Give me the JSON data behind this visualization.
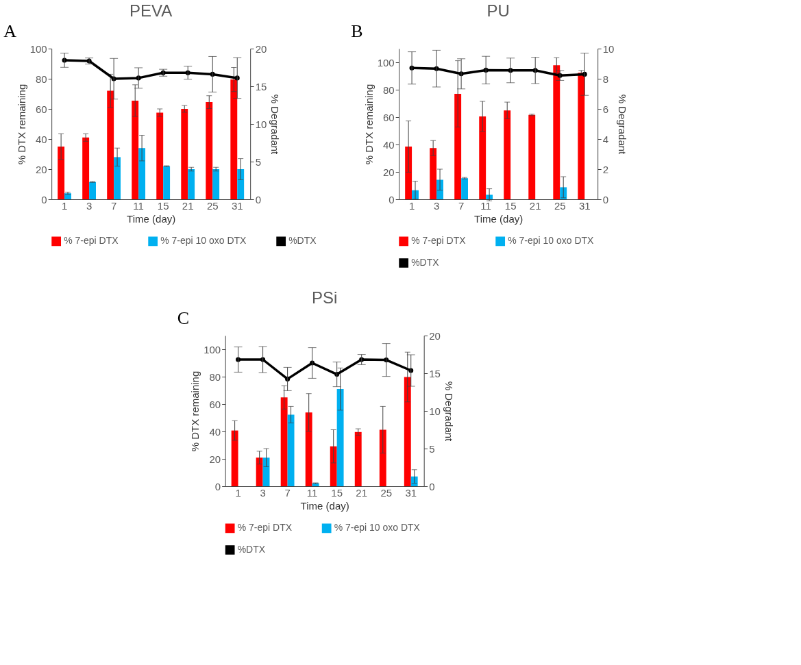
{
  "chart_data": [
    {
      "type": "bar",
      "title": "PEVA",
      "xlabel": "Time (day)",
      "ylabel": "% DTX remaining",
      "y2label": "% Degradant",
      "annotations": [
        "A"
      ],
      "legend": "bottom",
      "categories": [
        "1",
        "3",
        "7",
        "11",
        "15",
        "21",
        "25",
        "31"
      ],
      "ylim": [
        0,
        100
      ],
      "yticks": [
        0,
        20,
        40,
        60,
        80,
        100
      ],
      "y2lim": [
        0,
        20
      ],
      "y2ticks": [
        0,
        5,
        10,
        15,
        20
      ],
      "series": [
        {
          "name": "% 7-epi DTX",
          "color": "#ff0000",
          "axis": "y2",
          "values": [
            7,
            8.2,
            14.4,
            13.1,
            11.5,
            12,
            12.9,
            15.9
          ],
          "errors": [
            1.7,
            0.5,
            2.2,
            2.1,
            0.5,
            0.45,
            0.85,
            1.6
          ]
        },
        {
          "name": "% 7-epi 10 oxo DTX",
          "color": "#00b0f0",
          "axis": "y2",
          "values": [
            0.8,
            2.3,
            5.6,
            6.8,
            4.4,
            4,
            4,
            4
          ],
          "errors": [
            0.15,
            0.05,
            1.2,
            1.7,
            0.05,
            0.25,
            0.25,
            1.4
          ]
        },
        {
          "name": "%DTX",
          "color": "#000000",
          "type": "line",
          "axis": "y",
          "marker": "circle",
          "line_style": "solid",
          "values": [
            92.3,
            91.8,
            80,
            80.5,
            84,
            84,
            83,
            80.5
          ],
          "errors": [
            4.7,
            2,
            13.5,
            6.8,
            2.3,
            4.3,
            11.8,
            13.5
          ]
        }
      ]
    },
    {
      "type": "bar",
      "title": "PU",
      "xlabel": "Time (day)",
      "ylabel": "% DTX remaining",
      "y2label": "% Degradant",
      "annotations": [
        "B"
      ],
      "legend": "bottom",
      "categories": [
        "1",
        "3",
        "7",
        "11",
        "15",
        "21",
        "25",
        "31"
      ],
      "ylim": [
        0,
        110
      ],
      "yticks": [
        0,
        20,
        40,
        60,
        80,
        100
      ],
      "y2lim": [
        0,
        10
      ],
      "y2ticks": [
        0,
        2,
        4,
        6,
        8,
        10
      ],
      "series": [
        {
          "name": "% 7-epi DTX",
          "color": "#ff0000",
          "axis": "y2",
          "values": [
            3.5,
            3.4,
            7,
            5.5,
            5.9,
            5.6,
            8.9,
            8.4
          ],
          "errors": [
            1.7,
            0.5,
            2.2,
            1,
            0.55,
            0.05,
            0.5,
            0.15
          ]
        },
        {
          "name": "% 7-epi 10 oxo DTX",
          "color": "#00b0f0",
          "axis": "y2",
          "values": [
            0.6,
            1.3,
            1.4,
            0.3,
            null,
            null,
            0.8,
            null
          ],
          "errors": [
            0.6,
            0.7,
            0.05,
            0.4,
            null,
            null,
            0.7,
            null
          ]
        },
        {
          "name": "%DTX",
          "color": "#000000",
          "type": "line",
          "axis": "y",
          "marker": "circle",
          "line_style": "solid",
          "values": [
            95.9,
            95.4,
            91.6,
            94.3,
            94.1,
            94.1,
            90.4,
            91.3
          ],
          "errors": [
            11.8,
            13.4,
            11,
            10.1,
            9,
            9.6,
            3.6,
            15.4
          ]
        }
      ]
    },
    {
      "type": "bar",
      "title": "PSi",
      "xlabel": "Time (day)",
      "ylabel": "% DTX remaining",
      "y2label": "% Degradant",
      "annotations": [
        "C"
      ],
      "legend": "bottom",
      "categories": [
        "1",
        "3",
        "7",
        "11",
        "15",
        "21",
        "25",
        "31"
      ],
      "ylim": [
        0,
        110
      ],
      "yticks": [
        0,
        20,
        40,
        60,
        80,
        100
      ],
      "y2lim": [
        0,
        20
      ],
      "y2ticks": [
        0,
        5,
        10,
        15,
        20
      ],
      "series": [
        {
          "name": "% 7-epi DTX",
          "color": "#ff0000",
          "axis": "y2",
          "values": [
            7.4,
            3.8,
            11.8,
            9.8,
            5.3,
            7.2,
            7.5,
            14.5
          ],
          "errors": [
            1.3,
            0.85,
            1.55,
            2.5,
            2.2,
            0.43,
            3.1,
            3.3
          ]
        },
        {
          "name": "% 7-epi 10 oxo DTX",
          "color": "#00b0f0",
          "axis": "y2",
          "values": [
            null,
            3.8,
            9.5,
            0.4,
            12.9,
            null,
            null,
            1.3
          ],
          "errors": [
            null,
            1.2,
            1.1,
            0.05,
            2.8,
            null,
            null,
            0.9
          ]
        },
        {
          "name": "%DTX",
          "color": "#000000",
          "type": "line",
          "axis": "y",
          "marker": "circle",
          "line_style": "solid",
          "values": [
            92.5,
            92.5,
            78.3,
            90,
            81.7,
            92.5,
            92.2,
            84.5
          ],
          "errors": [
            9.2,
            9.5,
            8.5,
            11.2,
            9,
            3.7,
            12,
            11.5
          ]
        }
      ]
    }
  ]
}
